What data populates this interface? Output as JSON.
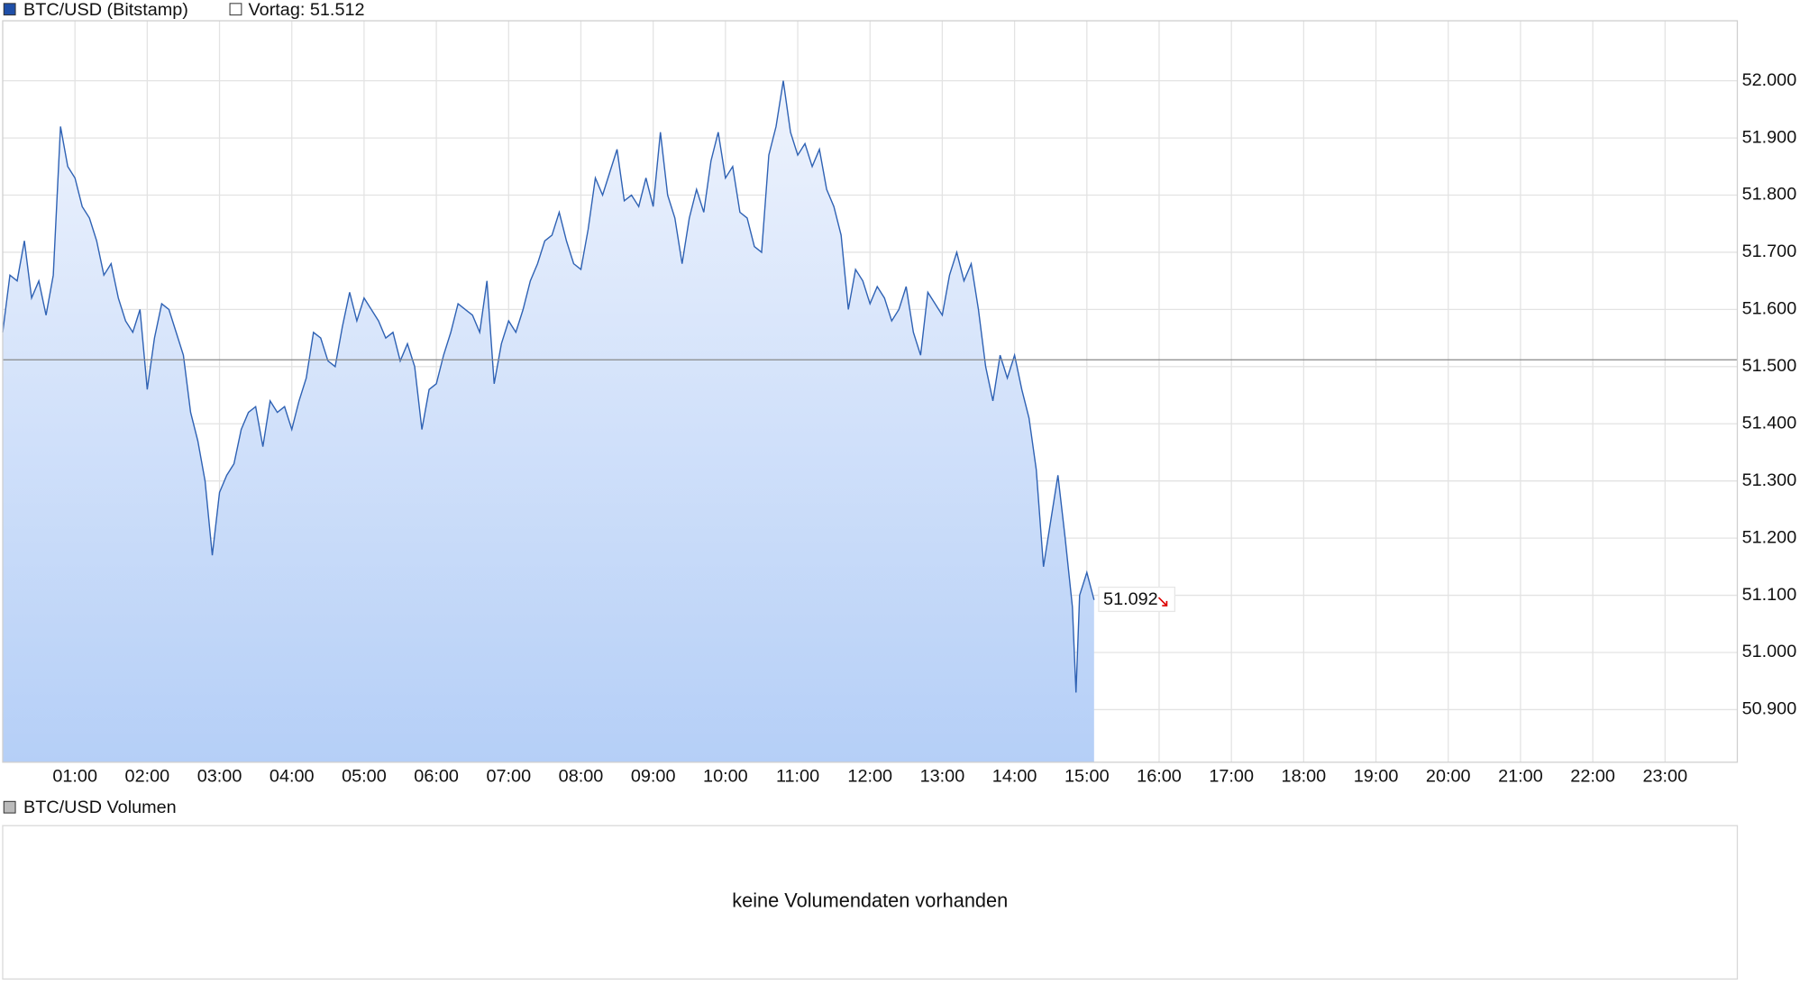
{
  "chart_data": {
    "type": "line",
    "area": true,
    "series": [
      {
        "name": "BTC/USD (Bitstamp)",
        "color": "#2f62b4",
        "values": [
          51560,
          51660,
          51650,
          51720,
          51620,
          51650,
          51590,
          51660,
          51920,
          51850,
          51830,
          51780,
          51760,
          51720,
          51660,
          51680,
          51620,
          51580,
          51560,
          51600,
          51460,
          51550,
          51610,
          51600,
          51560,
          51520,
          51420,
          51370,
          51300,
          51170,
          51280,
          51310,
          51330,
          51390,
          51420,
          51430,
          51360,
          51440,
          51420,
          51430,
          51390,
          51440,
          51480,
          51560,
          51550,
          51510,
          51500,
          51570,
          51630,
          51580,
          51620,
          51600,
          51580,
          51550,
          51560,
          51510,
          51540,
          51500,
          51390,
          51460,
          51470,
          51520,
          51560,
          51610,
          51600,
          51590,
          51560,
          51650,
          51470,
          51540,
          51580,
          51560,
          51600,
          51650,
          51680,
          51720,
          51730,
          51770,
          51720,
          51680,
          51670,
          51740,
          51830,
          51800,
          51840,
          51880,
          51790,
          51800,
          51780,
          51830,
          51780,
          51910,
          51800,
          51760,
          51680,
          51760,
          51810,
          51770,
          51860,
          51910,
          51830,
          51850,
          51770,
          51760,
          51710,
          51700,
          51870,
          51920,
          52000,
          51910,
          51870,
          51890,
          51850,
          51880,
          51810,
          51780,
          51730,
          51600,
          51670,
          51650,
          51610,
          51640,
          51620,
          51580,
          51600,
          51640,
          51560,
          51520,
          51630,
          51610,
          51590,
          51660,
          51700,
          51650,
          51680,
          51600,
          51500,
          51440,
          51520,
          51480,
          51520,
          51460,
          51410,
          51320,
          51150,
          51230,
          51310,
          51200,
          51080,
          50930,
          51100,
          51140,
          51092
        ]
      }
    ],
    "x": [
      0,
      0.1,
      0.2,
      0.3,
      0.4,
      0.5,
      0.6,
      0.7,
      0.8,
      0.9,
      1,
      1.1,
      1.2,
      1.3,
      1.4,
      1.5,
      1.6,
      1.7,
      1.8,
      1.9,
      2,
      2.1,
      2.2,
      2.3,
      2.4,
      2.5,
      2.6,
      2.7,
      2.8,
      2.9,
      3,
      3.1,
      3.2,
      3.3,
      3.4,
      3.5,
      3.6,
      3.7,
      3.8,
      3.9,
      4,
      4.1,
      4.2,
      4.3,
      4.4,
      4.5,
      4.6,
      4.7,
      4.8,
      4.9,
      5,
      5.1,
      5.2,
      5.3,
      5.4,
      5.5,
      5.6,
      5.7,
      5.8,
      5.9,
      6,
      6.1,
      6.2,
      6.3,
      6.4,
      6.5,
      6.6,
      6.7,
      6.8,
      6.9,
      7,
      7.1,
      7.2,
      7.3,
      7.4,
      7.5,
      7.6,
      7.7,
      7.8,
      7.9,
      8,
      8.1,
      8.2,
      8.3,
      8.4,
      8.5,
      8.6,
      8.7,
      8.8,
      8.9,
      9,
      9.1,
      9.2,
      9.3,
      9.4,
      9.5,
      9.6,
      9.7,
      9.8,
      9.9,
      10,
      10.1,
      10.2,
      10.3,
      10.4,
      10.5,
      10.6,
      10.7,
      10.8,
      10.9,
      11,
      11.1,
      11.2,
      11.3,
      11.4,
      11.5,
      11.6,
      11.7,
      11.8,
      11.9,
      12,
      12.1,
      12.2,
      12.3,
      12.4,
      12.5,
      12.6,
      12.7,
      12.8,
      12.9,
      13,
      13.1,
      13.2,
      13.3,
      13.4,
      13.5,
      13.6,
      13.7,
      13.8,
      13.9,
      14,
      14.1,
      14.2,
      14.3,
      14.4,
      14.5,
      14.6,
      14.7,
      14.8,
      14.85,
      14.9,
      15,
      15.1
    ],
    "xlim": [
      0,
      24
    ],
    "xticks": [
      {
        "value": 1,
        "label": "01:00"
      },
      {
        "value": 2,
        "label": "02:00"
      },
      {
        "value": 3,
        "label": "03:00"
      },
      {
        "value": 4,
        "label": "04:00"
      },
      {
        "value": 5,
        "label": "05:00"
      },
      {
        "value": 6,
        "label": "06:00"
      },
      {
        "value": 7,
        "label": "07:00"
      },
      {
        "value": 8,
        "label": "08:00"
      },
      {
        "value": 9,
        "label": "09:00"
      },
      {
        "value": 10,
        "label": "10:00"
      },
      {
        "value": 11,
        "label": "11:00"
      },
      {
        "value": 12,
        "label": "12:00"
      },
      {
        "value": 13,
        "label": "13:00"
      },
      {
        "value": 14,
        "label": "14:00"
      },
      {
        "value": 15,
        "label": "15:00"
      },
      {
        "value": 16,
        "label": "16:00"
      },
      {
        "value": 17,
        "label": "17:00"
      },
      {
        "value": 18,
        "label": "18:00"
      },
      {
        "value": 19,
        "label": "19:00"
      },
      {
        "value": 20,
        "label": "20:00"
      },
      {
        "value": 21,
        "label": "21:00"
      },
      {
        "value": 22,
        "label": "22:00"
      },
      {
        "value": 23,
        "label": "23:00"
      }
    ],
    "ylim": [
      50808,
      52105
    ],
    "yticks": [
      {
        "value": 50900,
        "label": "50.900"
      },
      {
        "value": 51000,
        "label": "51.000"
      },
      {
        "value": 51100,
        "label": "51.100"
      },
      {
        "value": 51200,
        "label": "51.200"
      },
      {
        "value": 51300,
        "label": "51.300"
      },
      {
        "value": 51400,
        "label": "51.400"
      },
      {
        "value": 51500,
        "label": "51.500"
      },
      {
        "value": 51600,
        "label": "51.600"
      },
      {
        "value": 51700,
        "label": "51.700"
      },
      {
        "value": 51800,
        "label": "51.800"
      },
      {
        "value": 51900,
        "label": "51.900"
      },
      {
        "value": 52000,
        "label": "52.000"
      }
    ],
    "grid": true,
    "previous_close": {
      "value": 51512,
      "label": "Vortag: 51.512"
    },
    "last_value": {
      "value": 51092,
      "label": "51.092"
    }
  },
  "volume_panel": {
    "title": "BTC/USD Volumen",
    "message": "keine Volumendaten vorhanden"
  }
}
